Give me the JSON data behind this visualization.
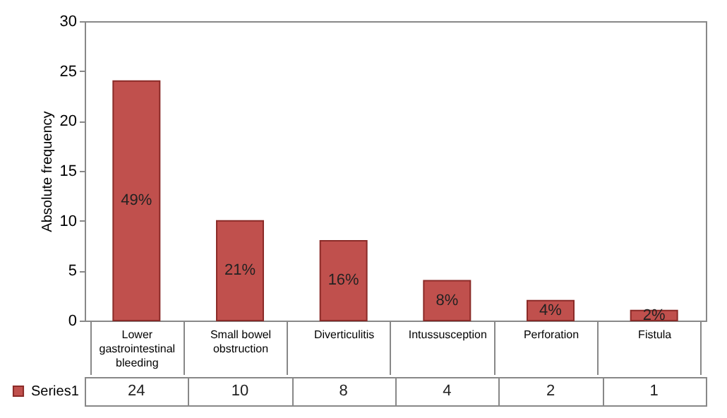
{
  "chart_data": {
    "type": "bar",
    "ylabel": "Absolute frequency",
    "categories": [
      "Lower gastrointestinal bleeding",
      "Small bowel obstruction",
      "Diverticulitis",
      "Intussusception",
      "Perforation",
      "Fistula"
    ],
    "series": [
      {
        "name": "Series1",
        "color": "#c0504d",
        "values": [
          24,
          10,
          8,
          4,
          2,
          1
        ]
      }
    ],
    "annotations": [
      "49%",
      "21%",
      "16%",
      "8%",
      "4%",
      "2%"
    ],
    "ylim": [
      0,
      30
    ],
    "yticks": [
      0,
      5,
      10,
      15,
      20,
      25,
      30
    ],
    "data_labels": true,
    "legend": "bottom left",
    "grid": false
  }
}
